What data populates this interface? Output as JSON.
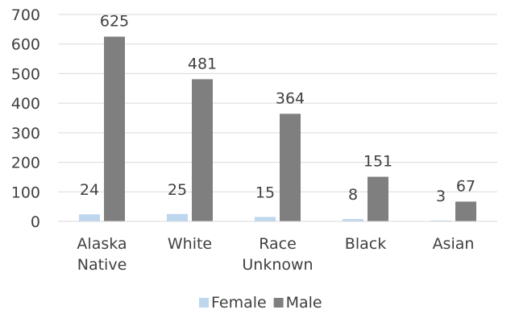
{
  "chart_data": {
    "type": "bar",
    "categories": [
      "Alaska Native",
      "White",
      "Race Unknown",
      "Black",
      "Asian"
    ],
    "category_lines": [
      [
        "Alaska",
        "Native"
      ],
      [
        "White"
      ],
      [
        "Race",
        "Unknown"
      ],
      [
        "Black"
      ],
      [
        "Asian"
      ]
    ],
    "series": [
      {
        "name": "Female",
        "values": [
          24,
          25,
          15,
          8,
          3
        ],
        "color": "#bdd7ee"
      },
      {
        "name": "Male",
        "values": [
          625,
          481,
          364,
          151,
          67
        ],
        "color": "#7f7f7f"
      }
    ],
    "yticks": [
      0,
      100,
      200,
      300,
      400,
      500,
      600,
      700
    ],
    "ylim": [
      0,
      700
    ],
    "gridlines": true,
    "gridline_color": "#d9d9d9",
    "legend_position": "bottom",
    "title": "",
    "xlabel": "",
    "ylabel": ""
  }
}
